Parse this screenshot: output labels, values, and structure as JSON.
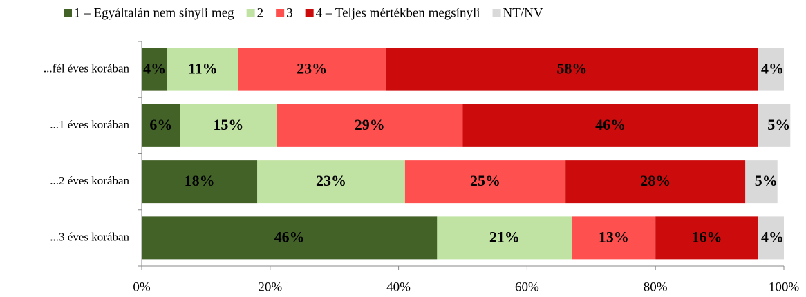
{
  "chart_data": {
    "type": "stacked-bar-horizontal",
    "categories": [
      "...fél éves korában",
      "...1 éves korában",
      "...2 éves korában",
      "...3 éves korában"
    ],
    "series": [
      {
        "name": "1 – Egyáltalán nem sínyli meg",
        "color": "#436228",
        "label_color": "#ffffff",
        "values": [
          4,
          6,
          18,
          46
        ],
        "value_labels": [
          "4%",
          "6%",
          "18%",
          "46%"
        ]
      },
      {
        "name": "2",
        "color": "#c0e3a3",
        "label_color": "#000000",
        "values": [
          11,
          15,
          23,
          21
        ],
        "value_labels": [
          "11%",
          "15%",
          "23%",
          "21%"
        ]
      },
      {
        "name": "3",
        "color": "#ff5050",
        "label_color": "#000000",
        "values": [
          23,
          29,
          25,
          13
        ],
        "value_labels": [
          "23%",
          "29%",
          "25%",
          "13%"
        ]
      },
      {
        "name": "4 – Teljes mértékben megsínyli",
        "color": "#cc0c0c",
        "label_color": "#ffffff",
        "values": [
          58,
          46,
          28,
          16
        ],
        "value_labels": [
          "58%",
          "46%",
          "28%",
          "16%"
        ]
      },
      {
        "name": "NT/NV",
        "color": "#d9d9d9",
        "label_color": "#000000",
        "values": [
          4,
          5,
          5,
          4
        ],
        "value_labels": [
          "4%",
          "5%",
          "5%",
          "4%"
        ]
      }
    ],
    "xlim": [
      0,
      100
    ],
    "xticks": [
      {
        "value": 0,
        "label": "0%"
      },
      {
        "value": 20,
        "label": "20%"
      },
      {
        "value": 40,
        "label": "40%"
      },
      {
        "value": 60,
        "label": "60%"
      },
      {
        "value": 80,
        "label": "80%"
      },
      {
        "value": 100,
        "label": "100%"
      }
    ],
    "legend": "top"
  }
}
